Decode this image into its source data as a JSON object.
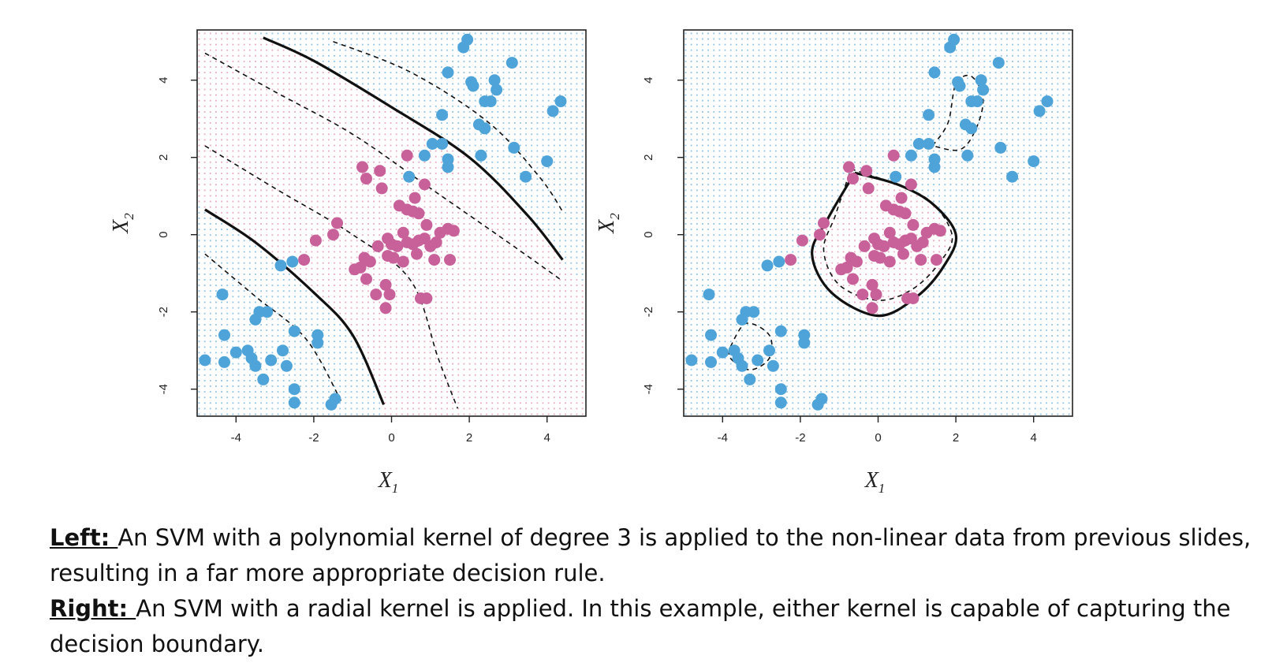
{
  "colors": {
    "class_blue": "#4ea3d8",
    "class_pink": "#c8609a",
    "grid_blue": "#8ec3e6",
    "grid_pink": "#e9a8c4",
    "boundary": "#111111"
  },
  "chart_data": [
    {
      "type": "scatter",
      "panel": "left",
      "kernel": "polynomial (degree 3)",
      "xlabel": "X",
      "xlabel_sub": "1",
      "ylabel": "X",
      "ylabel_sub": "2",
      "xlim": [
        -5,
        5
      ],
      "ylim": [
        -4.7,
        5.3
      ],
      "xticks": [
        -4,
        -2,
        0,
        2,
        4
      ],
      "yticks": [
        -4,
        -2,
        0,
        2,
        4
      ],
      "xtick_labels": [
        "-4",
        "-2",
        "0",
        "2",
        "4"
      ],
      "ytick_labels": [
        "-4",
        "-2",
        "0",
        "2",
        "4"
      ],
      "region_grid": "pink band between the two solid boundaries, blue elsewhere",
      "boundaries": {
        "solid": [
          [
            [
              -3.3,
              5.1
            ],
            [
              -2.0,
              4.5
            ],
            [
              0.0,
              3.3
            ],
            [
              2.0,
              2.0
            ],
            [
              3.5,
              0.5
            ],
            [
              4.4,
              -0.65
            ]
          ],
          [
            [
              -4.8,
              0.65
            ],
            [
              -3.5,
              -0.2
            ],
            [
              -2.0,
              -1.5
            ],
            [
              -1.0,
              -2.6
            ],
            [
              -0.2,
              -4.4
            ]
          ]
        ],
        "dashed": [
          [
            [
              -4.8,
              4.7
            ],
            [
              -3.0,
              3.7
            ],
            [
              -1.0,
              2.6
            ],
            [
              1.0,
              1.2
            ],
            [
              3.0,
              -0.2
            ],
            [
              4.4,
              -1.2
            ]
          ],
          [
            [
              -4.8,
              2.3
            ],
            [
              -3.0,
              1.2
            ],
            [
              -1.0,
              0.0
            ],
            [
              0.5,
              -1.2
            ],
            [
              1.2,
              -3.2
            ],
            [
              1.7,
              -4.5
            ]
          ],
          [
            [
              -1.5,
              5.0
            ],
            [
              0.5,
              4.2
            ],
            [
              2.5,
              2.9
            ],
            [
              3.8,
              1.5
            ],
            [
              4.4,
              0.6
            ]
          ],
          [
            [
              -4.8,
              -0.5
            ],
            [
              -3.5,
              -1.6
            ],
            [
              -2.2,
              -2.7
            ],
            [
              -1.3,
              -4.3
            ]
          ]
        ]
      }
    },
    {
      "type": "scatter",
      "panel": "right",
      "kernel": "radial",
      "xlabel": "X",
      "xlabel_sub": "1",
      "ylabel": "X",
      "ylabel_sub": "2",
      "xlim": [
        -5,
        5
      ],
      "ylim": [
        -4.7,
        5.3
      ],
      "xticks": [
        -4,
        -2,
        0,
        2,
        4
      ],
      "yticks": [
        -4,
        -2,
        0,
        2,
        4
      ],
      "xtick_labels": [
        "-4",
        "-2",
        "0",
        "2",
        "4"
      ],
      "ytick_labels": [
        "-4",
        "-2",
        "0",
        "2",
        "4"
      ],
      "region_grid": "pink inside the solid closed boundary, blue elsewhere",
      "boundaries": {
        "solid": [
          [
            [
              -0.6,
              1.6
            ],
            [
              0.5,
              1.3
            ],
            [
              1.4,
              0.8
            ],
            [
              2.0,
              0.0
            ],
            [
              1.7,
              -0.8
            ],
            [
              1.0,
              -1.6
            ],
            [
              0.0,
              -2.1
            ],
            [
              -1.2,
              -1.5
            ],
            [
              -1.7,
              -0.5
            ],
            [
              -1.3,
              0.4
            ],
            [
              -0.6,
              1.6
            ]
          ]
        ],
        "dashed": [
          [
            [
              -0.7,
              1.7
            ],
            [
              0.2,
              1.4
            ],
            [
              1.3,
              0.9
            ],
            [
              1.9,
              0.0
            ],
            [
              1.6,
              -0.7
            ],
            [
              0.9,
              -1.4
            ],
            [
              0.0,
              -1.7
            ],
            [
              -1.0,
              -1.3
            ],
            [
              -1.4,
              -0.4
            ],
            [
              -1.1,
              0.5
            ],
            [
              -0.7,
              1.7
            ]
          ],
          [
            [
              1.4,
              2.3
            ],
            [
              1.8,
              2.9
            ],
            [
              2.0,
              3.9
            ],
            [
              2.4,
              4.1
            ],
            [
              2.7,
              3.5
            ],
            [
              2.5,
              2.7
            ],
            [
              2.1,
              2.2
            ],
            [
              1.4,
              2.3
            ]
          ],
          [
            [
              -3.8,
              -2.9
            ],
            [
              -3.4,
              -2.3
            ],
            [
              -2.8,
              -2.6
            ],
            [
              -2.8,
              -3.2
            ],
            [
              -3.3,
              -3.5
            ],
            [
              -3.8,
              -3.2
            ],
            [
              -3.8,
              -2.9
            ]
          ]
        ]
      }
    }
  ],
  "points": {
    "blue": [
      [
        -4.8,
        -3.25
      ],
      [
        -4.35,
        -1.55
      ],
      [
        -4.3,
        -2.6
      ],
      [
        -4.3,
        -3.3
      ],
      [
        -4.0,
        -3.05
      ],
      [
        -3.7,
        -3.0
      ],
      [
        -3.6,
        -3.2
      ],
      [
        -3.5,
        -3.4
      ],
      [
        -3.5,
        -2.2
      ],
      [
        -3.4,
        -2.0
      ],
      [
        -3.3,
        -3.75
      ],
      [
        -3.2,
        -2.0
      ],
      [
        -3.1,
        -3.25
      ],
      [
        -2.8,
        -3.0
      ],
      [
        -2.7,
        -3.4
      ],
      [
        -2.5,
        -2.5
      ],
      [
        -2.5,
        -4.0
      ],
      [
        -2.5,
        -4.35
      ],
      [
        -1.9,
        -2.8
      ],
      [
        -1.9,
        -2.6
      ],
      [
        -1.55,
        -4.4
      ],
      [
        -1.45,
        -4.25
      ],
      [
        -2.85,
        -0.8
      ],
      [
        -2.55,
        -0.7
      ],
      [
        1.85,
        4.85
      ],
      [
        1.95,
        5.05
      ],
      [
        1.45,
        4.2
      ],
      [
        2.05,
        3.95
      ],
      [
        2.1,
        3.85
      ],
      [
        2.65,
        4.0
      ],
      [
        2.7,
        3.75
      ],
      [
        2.4,
        3.45
      ],
      [
        2.55,
        3.45
      ],
      [
        3.1,
        4.45
      ],
      [
        2.25,
        2.85
      ],
      [
        2.4,
        2.75
      ],
      [
        2.3,
        2.05
      ],
      [
        1.3,
        3.1
      ],
      [
        4.35,
        3.45
      ],
      [
        4.15,
        3.2
      ],
      [
        3.15,
        2.25
      ],
      [
        3.45,
        1.5
      ],
      [
        4.0,
        1.9
      ],
      [
        1.05,
        2.35
      ],
      [
        1.3,
        2.35
      ],
      [
        0.85,
        2.05
      ],
      [
        1.45,
        1.95
      ],
      [
        1.45,
        1.75
      ],
      [
        0.45,
        1.5
      ]
    ],
    "pink": [
      [
        -0.75,
        1.75
      ],
      [
        -0.3,
        1.65
      ],
      [
        0.4,
        2.05
      ],
      [
        -0.65,
        1.45
      ],
      [
        -0.25,
        1.2
      ],
      [
        0.85,
        1.3
      ],
      [
        0.6,
        0.95
      ],
      [
        0.2,
        0.75
      ],
      [
        0.4,
        0.65
      ],
      [
        0.55,
        0.6
      ],
      [
        0.7,
        0.55
      ],
      [
        0.9,
        0.25
      ],
      [
        1.45,
        0.15
      ],
      [
        1.6,
        0.1
      ],
      [
        1.25,
        0.05
      ],
      [
        -1.4,
        0.3
      ],
      [
        -1.5,
        0.0
      ],
      [
        -1.95,
        -0.15
      ],
      [
        -2.25,
        -0.65
      ],
      [
        -0.35,
        -0.3
      ],
      [
        -0.1,
        -0.1
      ],
      [
        0.0,
        -0.25
      ],
      [
        0.15,
        -0.3
      ],
      [
        0.3,
        0.05
      ],
      [
        0.4,
        -0.2
      ],
      [
        0.55,
        -0.25
      ],
      [
        0.7,
        -0.15
      ],
      [
        0.85,
        -0.1
      ],
      [
        1.0,
        -0.3
      ],
      [
        1.15,
        -0.2
      ],
      [
        -0.7,
        -0.6
      ],
      [
        -0.55,
        -0.7
      ],
      [
        -0.8,
        -0.85
      ],
      [
        -0.95,
        -0.9
      ],
      [
        -0.65,
        -1.15
      ],
      [
        -0.1,
        -0.55
      ],
      [
        0.05,
        -0.6
      ],
      [
        0.3,
        -0.7
      ],
      [
        0.65,
        -0.5
      ],
      [
        1.1,
        -0.65
      ],
      [
        1.5,
        -0.65
      ],
      [
        -0.15,
        -1.3
      ],
      [
        -0.05,
        -1.55
      ],
      [
        -0.4,
        -1.55
      ],
      [
        -0.15,
        -1.9
      ],
      [
        0.75,
        -1.65
      ],
      [
        0.9,
        -1.65
      ]
    ]
  },
  "caption": {
    "left_lead": "Left: ",
    "left_text": "An SVM with a polynomial kernel of degree 3 is applied to the non-linear data from previous slides, resulting in a far more appropriate decision rule.",
    "right_lead": "Right: ",
    "right_text": "An SVM with a radial kernel is applied. In this example, either kernel is capable of capturing the decision boundary."
  }
}
